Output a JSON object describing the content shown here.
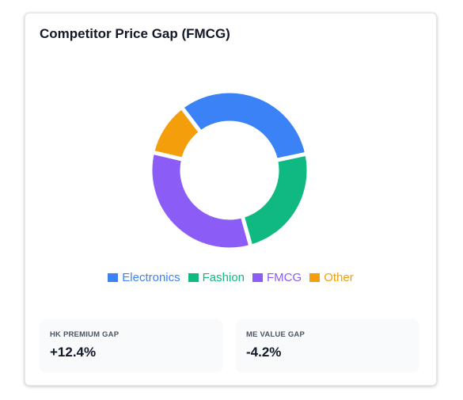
{
  "card": {
    "title": "Competitor Price Gap (FMCG)"
  },
  "chart_data": {
    "type": "doughnut",
    "title": "Competitor Price Gap (FMCG)",
    "legend_position": "bottom",
    "categories": [
      "Electronics",
      "Fashion",
      "FMCG",
      "Other"
    ],
    "values": [
      32,
      24,
      33,
      11
    ],
    "colors": [
      "#3b82f6",
      "#10b981",
      "#8b5cf6",
      "#f59e0b"
    ]
  },
  "stats": [
    {
      "label": "HK PREMIUM GAP",
      "value": "+12.4%"
    },
    {
      "label": "ME VALUE GAP",
      "value": "-4.2%"
    }
  ]
}
